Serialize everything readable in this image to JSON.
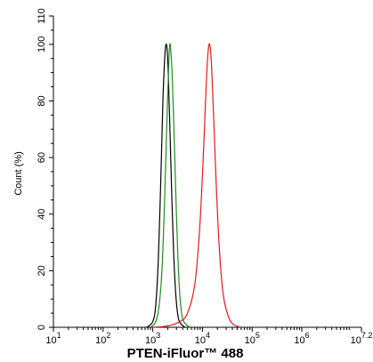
{
  "chart_data": {
    "type": "line",
    "title": "",
    "xlabel": "PTEN-iFluor™ 488",
    "ylabel": "Count  (%)",
    "x_scale": "log",
    "xlim": [
      10,
      15848931.92
    ],
    "ylim": [
      0,
      110
    ],
    "x_ticks": [
      {
        "value": 10,
        "base": "10",
        "exp": "1"
      },
      {
        "value": 100,
        "base": "10",
        "exp": "2"
      },
      {
        "value": 1000,
        "base": "10",
        "exp": "3"
      },
      {
        "value": 10000,
        "base": "10",
        "exp": "4"
      },
      {
        "value": 100000,
        "base": "10",
        "exp": "5"
      },
      {
        "value": 1000000,
        "base": "10",
        "exp": "6"
      },
      {
        "value": 15848931.92,
        "base": "10",
        "exp": "7.2"
      }
    ],
    "y_ticks": [
      0,
      20,
      40,
      60,
      80,
      100,
      110
    ],
    "grid": false,
    "series": [
      {
        "color": "#000000",
        "x": [
          750,
          1000,
          1150,
          1300,
          1450,
          1600,
          1750,
          1850,
          1950,
          2050,
          2200,
          2400,
          2650,
          2950,
          3300,
          3800,
          4500
        ],
        "y": [
          0,
          2,
          8,
          25,
          52,
          80,
          96,
          100,
          98,
          90,
          72,
          48,
          25,
          10,
          3,
          1,
          0
        ]
      },
      {
        "color": "#228B22",
        "x": [
          900,
          1150,
          1350,
          1550,
          1750,
          1950,
          2100,
          2200,
          2300,
          2450,
          2650,
          2900,
          3200,
          3550,
          4000,
          4700,
          5600
        ],
        "y": [
          0,
          2,
          8,
          22,
          48,
          76,
          93,
          100,
          98,
          90,
          72,
          48,
          25,
          10,
          3,
          1,
          0
        ]
      },
      {
        "color": "#E41A1C",
        "x": [
          1000,
          2000,
          3500,
          5000,
          7000,
          8800,
          10500,
          11800,
          12800,
          13600,
          14300,
          15200,
          16500,
          18500,
          21500,
          26000,
          33000,
          42000,
          60000
        ],
        "y": [
          0,
          0.5,
          2,
          5,
          15,
          35,
          62,
          84,
          96,
          100,
          99,
          93,
          78,
          55,
          30,
          12,
          4,
          1,
          0
        ]
      }
    ]
  }
}
